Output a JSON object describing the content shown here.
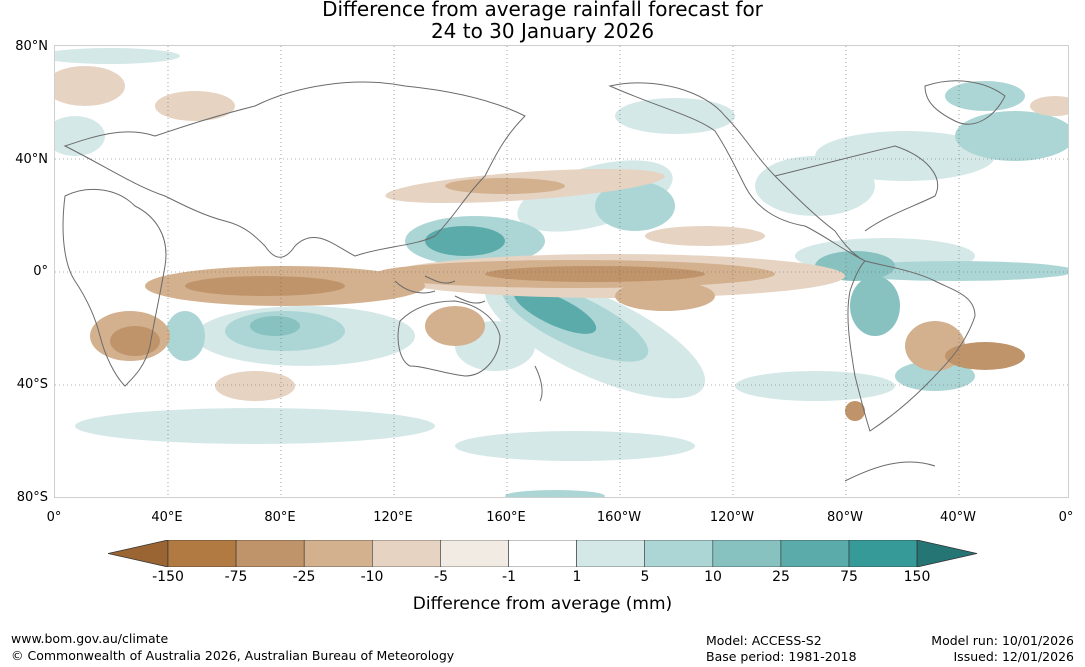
{
  "title": {
    "line1": "Difference from average rainfall forecast for",
    "line2": "24 to 30 January 2026"
  },
  "map": {
    "lat_labels": [
      "80°N",
      "40°N",
      "0°",
      "40°S",
      "80°S"
    ],
    "lon_labels": [
      "0°",
      "40°E",
      "80°E",
      "120°E",
      "160°E",
      "160°W",
      "120°W",
      "80°W",
      "40°W",
      "0°"
    ]
  },
  "colorbar": {
    "title": "Difference from average (mm)",
    "tick_labels": [
      "-150",
      "-75",
      "-25",
      "-10",
      "-5",
      "-1",
      "1",
      "5",
      "10",
      "25",
      "75",
      "150"
    ],
    "colors": [
      "#9a6433",
      "#b07a42",
      "#c0946a",
      "#d3b08e",
      "#e6d3c2",
      "#f2ebe4",
      "#ffffff",
      "#d4e8e7",
      "#acd6d5",
      "#87c1c0",
      "#5cabab",
      "#369a99",
      "#257575"
    ]
  },
  "footer": {
    "url": "www.bom.gov.au/climate",
    "copyright": "© Commonwealth of Australia 2026, Australian Bureau of Meteorology",
    "model": "Model: ACCESS-S2",
    "base_period": "Base period: 1981-2018",
    "model_run": "Model run: 10/01/2026",
    "issued": "Issued: 12/01/2026"
  }
}
